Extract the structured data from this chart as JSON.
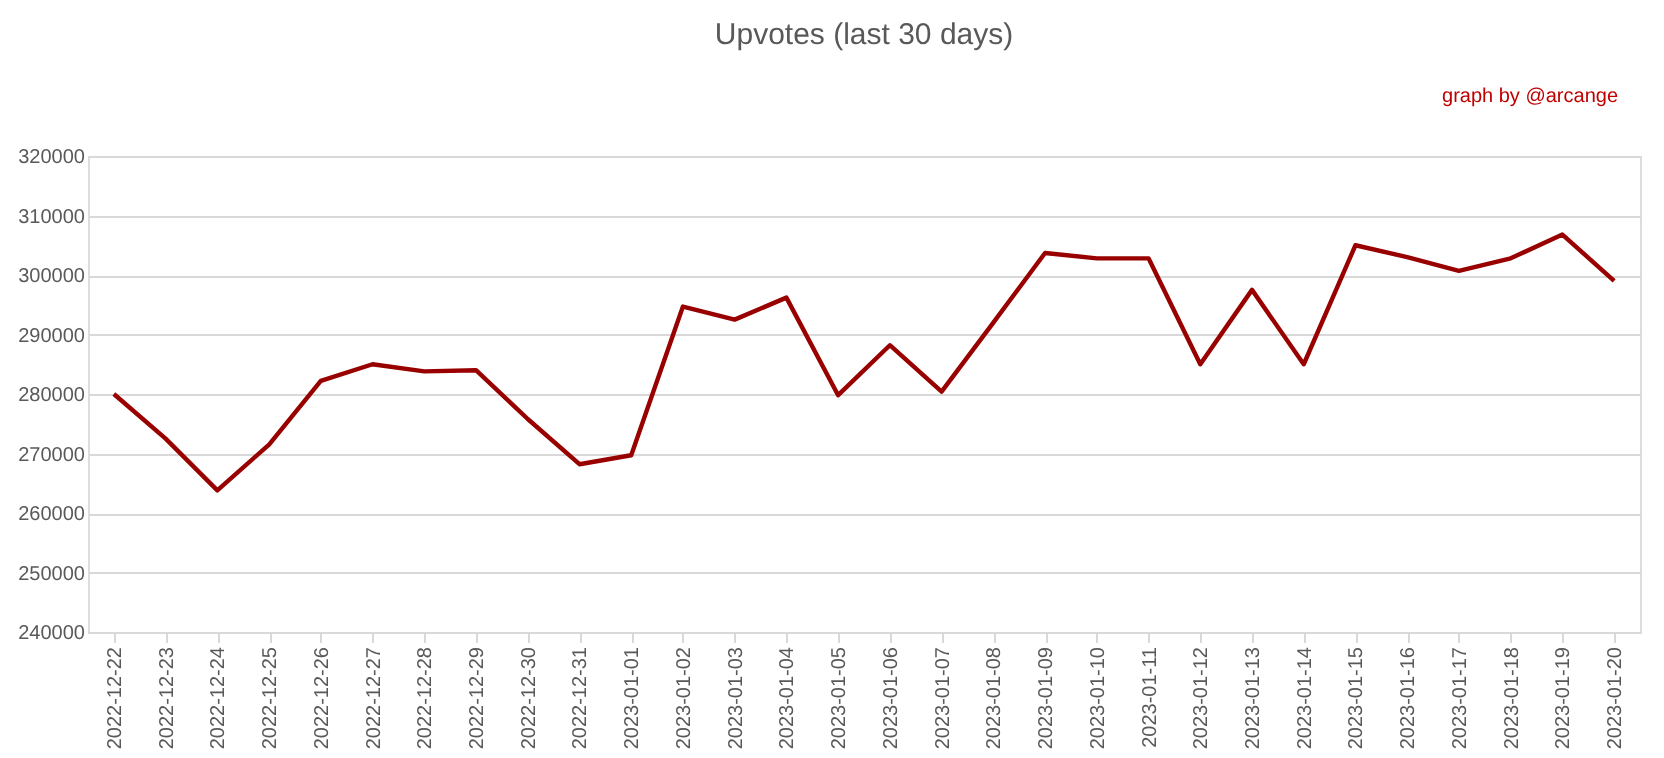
{
  "chart_data": {
    "type": "line",
    "title": "Upvotes (last 30 days)",
    "annotations": [
      "graph by @arcange"
    ],
    "categories": [
      "2022-12-22",
      "2022-12-23",
      "2022-12-24",
      "2022-12-25",
      "2022-12-26",
      "2022-12-27",
      "2022-12-28",
      "2022-12-29",
      "2022-12-30",
      "2022-12-31",
      "2023-01-01",
      "2023-01-02",
      "2023-01-03",
      "2023-01-04",
      "2023-01-05",
      "2023-01-06",
      "2023-01-07",
      "2023-01-08",
      "2023-01-09",
      "2023-01-10",
      "2023-01-11",
      "2023-01-12",
      "2023-01-13",
      "2023-01-14",
      "2023-01-15",
      "2023-01-16",
      "2023-01-17",
      "2023-01-18",
      "2023-01-19",
      "2023-01-20"
    ],
    "series": [
      {
        "color": "#990000",
        "values": [
          280000,
          272500,
          263800,
          271500,
          282200,
          285000,
          283800,
          284000,
          275800,
          268200,
          269700,
          294700,
          292500,
          296200,
          279800,
          288200,
          280400,
          292000,
          303700,
          302800,
          302800,
          285000,
          297500,
          285000,
          305000,
          303000,
          300700,
          302800,
          306800,
          299000
        ]
      }
    ],
    "ylim": [
      240000,
      320000
    ],
    "yticks": [
      240000,
      250000,
      260000,
      270000,
      280000,
      290000,
      300000,
      310000,
      320000
    ],
    "grid": "y",
    "legend": false,
    "marker": "none",
    "line_style": "solid"
  }
}
